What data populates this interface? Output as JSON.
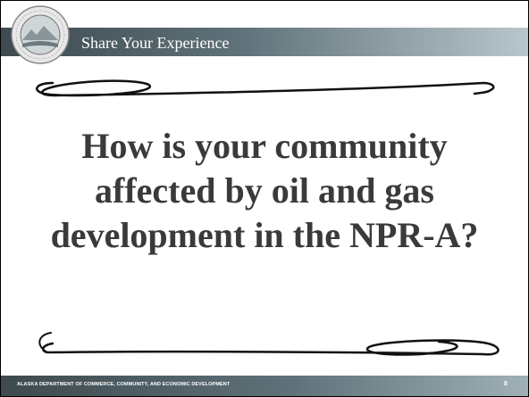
{
  "header": {
    "title": "Share Your Experience"
  },
  "body": {
    "question": "How is your community affected by oil and gas development in the NPR-A?"
  },
  "footer": {
    "organization": "ALASKA DEPARTMENT OF COMMERCE, COMMUNITY, AND ECONOMIC DEVELOPMENT",
    "page_number": "8"
  }
}
